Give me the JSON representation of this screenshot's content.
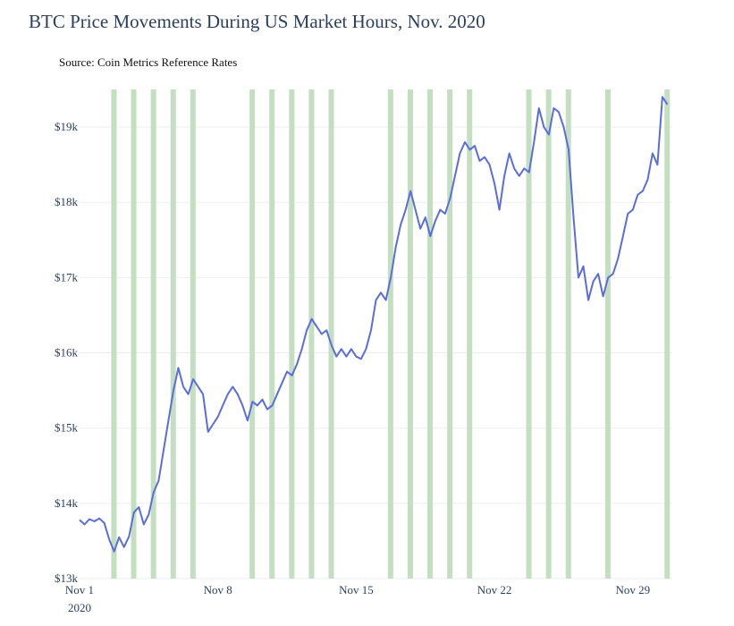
{
  "chart_data": {
    "type": "line",
    "title": "BTC Price Movements During US Market Hours, Nov. 2020",
    "subtitle": "Source: Coin Metrics Reference Rates",
    "xlabel": "",
    "ylabel": "",
    "x_range": [
      "2020-11-01",
      "2020-12-01"
    ],
    "ylim": [
      13000,
      19500
    ],
    "y_ticks": [
      13000,
      14000,
      15000,
      16000,
      17000,
      18000,
      19000
    ],
    "y_tick_labels": [
      "$13k",
      "$14k",
      "$15k",
      "$16k",
      "$17k",
      "$18k",
      "$19k"
    ],
    "x_ticks": [
      "2020-11-01",
      "2020-11-08",
      "2020-11-15",
      "2020-11-22",
      "2020-11-29"
    ],
    "x_tick_labels": [
      "Nov 1",
      "Nov 8",
      "Nov 15",
      "Nov 22",
      "Nov 29"
    ],
    "x_tick_sublabel": "2020",
    "grid": true,
    "line_color": "#5a6ddb",
    "band_color": "#c3dfc0",
    "shaded_bands": [
      {
        "date": "2020-11-02"
      },
      {
        "date": "2020-11-03"
      },
      {
        "date": "2020-11-04"
      },
      {
        "date": "2020-11-05"
      },
      {
        "date": "2020-11-06"
      },
      {
        "date": "2020-11-09"
      },
      {
        "date": "2020-11-10"
      },
      {
        "date": "2020-11-11"
      },
      {
        "date": "2020-11-12"
      },
      {
        "date": "2020-11-13"
      },
      {
        "date": "2020-11-16"
      },
      {
        "date": "2020-11-17"
      },
      {
        "date": "2020-11-18"
      },
      {
        "date": "2020-11-19"
      },
      {
        "date": "2020-11-20"
      },
      {
        "date": "2020-11-23"
      },
      {
        "date": "2020-11-24"
      },
      {
        "date": "2020-11-25"
      },
      {
        "date": "2020-11-27"
      },
      {
        "date": "2020-11-30"
      }
    ],
    "series": [
      {
        "values": [
          [
            "2020-11-01 00:00",
            13780
          ],
          [
            "2020-11-01 06:00",
            13720
          ],
          [
            "2020-11-01 12:00",
            13790
          ],
          [
            "2020-11-01 18:00",
            13760
          ],
          [
            "2020-11-02 00:00",
            13800
          ],
          [
            "2020-11-02 06:00",
            13740
          ],
          [
            "2020-11-02 12:00",
            13520
          ],
          [
            "2020-11-02 18:00",
            13360
          ],
          [
            "2020-11-03 00:00",
            13550
          ],
          [
            "2020-11-03 06:00",
            13420
          ],
          [
            "2020-11-03 12:00",
            13560
          ],
          [
            "2020-11-03 18:00",
            13880
          ],
          [
            "2020-11-04 00:00",
            13950
          ],
          [
            "2020-11-04 06:00",
            13720
          ],
          [
            "2020-11-04 12:00",
            13850
          ],
          [
            "2020-11-04 18:00",
            14150
          ],
          [
            "2020-11-05 00:00",
            14300
          ],
          [
            "2020-11-05 06:00",
            14700
          ],
          [
            "2020-11-05 12:00",
            15100
          ],
          [
            "2020-11-05 18:00",
            15500
          ],
          [
            "2020-11-06 00:00",
            15800
          ],
          [
            "2020-11-06 06:00",
            15550
          ],
          [
            "2020-11-06 12:00",
            15450
          ],
          [
            "2020-11-06 18:00",
            15650
          ],
          [
            "2020-11-07 00:00",
            15550
          ],
          [
            "2020-11-07 06:00",
            15450
          ],
          [
            "2020-11-07 12:00",
            14950
          ],
          [
            "2020-11-07 18:00",
            15050
          ],
          [
            "2020-11-08 00:00",
            15150
          ],
          [
            "2020-11-08 06:00",
            15300
          ],
          [
            "2020-11-08 12:00",
            15450
          ],
          [
            "2020-11-08 18:00",
            15550
          ],
          [
            "2020-11-09 00:00",
            15450
          ],
          [
            "2020-11-09 06:00",
            15300
          ],
          [
            "2020-11-09 12:00",
            15100
          ],
          [
            "2020-11-09 18:00",
            15350
          ],
          [
            "2020-11-10 00:00",
            15300
          ],
          [
            "2020-11-10 06:00",
            15380
          ],
          [
            "2020-11-10 12:00",
            15250
          ],
          [
            "2020-11-10 18:00",
            15300
          ],
          [
            "2020-11-11 00:00",
            15450
          ],
          [
            "2020-11-11 06:00",
            15600
          ],
          [
            "2020-11-11 12:00",
            15750
          ],
          [
            "2020-11-11 18:00",
            15700
          ],
          [
            "2020-11-12 00:00",
            15850
          ],
          [
            "2020-11-12 06:00",
            16050
          ],
          [
            "2020-11-12 12:00",
            16300
          ],
          [
            "2020-11-12 18:00",
            16450
          ],
          [
            "2020-11-13 00:00",
            16350
          ],
          [
            "2020-11-13 06:00",
            16250
          ],
          [
            "2020-11-13 12:00",
            16300
          ],
          [
            "2020-11-13 18:00",
            16100
          ],
          [
            "2020-11-14 00:00",
            15950
          ],
          [
            "2020-11-14 06:00",
            16050
          ],
          [
            "2020-11-14 12:00",
            15950
          ],
          [
            "2020-11-14 18:00",
            16050
          ],
          [
            "2020-11-15 00:00",
            15950
          ],
          [
            "2020-11-15 06:00",
            15920
          ],
          [
            "2020-11-15 12:00",
            16050
          ],
          [
            "2020-11-15 18:00",
            16300
          ],
          [
            "2020-11-16 00:00",
            16700
          ],
          [
            "2020-11-16 06:00",
            16800
          ],
          [
            "2020-11-16 12:00",
            16700
          ],
          [
            "2020-11-16 18:00",
            17000
          ],
          [
            "2020-11-17 00:00",
            17400
          ],
          [
            "2020-11-17 06:00",
            17700
          ],
          [
            "2020-11-17 12:00",
            17900
          ],
          [
            "2020-11-17 18:00",
            18150
          ],
          [
            "2020-11-18 00:00",
            17900
          ],
          [
            "2020-11-18 06:00",
            17650
          ],
          [
            "2020-11-18 12:00",
            17800
          ],
          [
            "2020-11-18 18:00",
            17550
          ],
          [
            "2020-11-19 00:00",
            17750
          ],
          [
            "2020-11-19 06:00",
            17900
          ],
          [
            "2020-11-19 12:00",
            17850
          ],
          [
            "2020-11-19 18:00",
            18050
          ],
          [
            "2020-11-20 00:00",
            18350
          ],
          [
            "2020-11-20 06:00",
            18650
          ],
          [
            "2020-11-20 12:00",
            18800
          ],
          [
            "2020-11-20 18:00",
            18700
          ],
          [
            "2020-11-21 00:00",
            18750
          ],
          [
            "2020-11-21 06:00",
            18550
          ],
          [
            "2020-11-21 12:00",
            18600
          ],
          [
            "2020-11-21 18:00",
            18500
          ],
          [
            "2020-11-22 00:00",
            18250
          ],
          [
            "2020-11-22 06:00",
            17900
          ],
          [
            "2020-11-22 12:00",
            18350
          ],
          [
            "2020-11-22 18:00",
            18650
          ],
          [
            "2020-11-23 00:00",
            18450
          ],
          [
            "2020-11-23 06:00",
            18350
          ],
          [
            "2020-11-23 12:00",
            18450
          ],
          [
            "2020-11-23 18:00",
            18400
          ],
          [
            "2020-11-24 00:00",
            18800
          ],
          [
            "2020-11-24 06:00",
            19250
          ],
          [
            "2020-11-24 12:00",
            19000
          ],
          [
            "2020-11-24 18:00",
            18900
          ],
          [
            "2020-11-25 00:00",
            19250
          ],
          [
            "2020-11-25 06:00",
            19200
          ],
          [
            "2020-11-25 12:00",
            19000
          ],
          [
            "2020-11-25 18:00",
            18700
          ],
          [
            "2020-11-26 00:00",
            17800
          ],
          [
            "2020-11-26 06:00",
            17000
          ],
          [
            "2020-11-26 12:00",
            17150
          ],
          [
            "2020-11-26 18:00",
            16700
          ],
          [
            "2020-11-27 00:00",
            16950
          ],
          [
            "2020-11-27 06:00",
            17050
          ],
          [
            "2020-11-27 12:00",
            16750
          ],
          [
            "2020-11-27 18:00",
            17000
          ],
          [
            "2020-11-28 00:00",
            17050
          ],
          [
            "2020-11-28 06:00",
            17250
          ],
          [
            "2020-11-28 12:00",
            17550
          ],
          [
            "2020-11-28 18:00",
            17850
          ],
          [
            "2020-11-29 00:00",
            17900
          ],
          [
            "2020-11-29 06:00",
            18100
          ],
          [
            "2020-11-29 12:00",
            18150
          ],
          [
            "2020-11-29 18:00",
            18300
          ],
          [
            "2020-11-30 00:00",
            18650
          ],
          [
            "2020-11-30 06:00",
            18500
          ],
          [
            "2020-11-30 12:00",
            19400
          ],
          [
            "2020-11-30 18:00",
            19300
          ]
        ]
      }
    ]
  }
}
